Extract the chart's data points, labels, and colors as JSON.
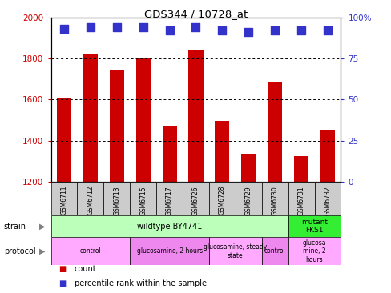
{
  "title": "GDS344 / 10728_at",
  "samples": [
    "GSM6711",
    "GSM6712",
    "GSM6713",
    "GSM6715",
    "GSM6717",
    "GSM6726",
    "GSM6728",
    "GSM6729",
    "GSM6730",
    "GSM6731",
    "GSM6732"
  ],
  "counts": [
    1610,
    1820,
    1745,
    1805,
    1470,
    1840,
    1495,
    1335,
    1685,
    1325,
    1455
  ],
  "percentiles": [
    93,
    94,
    94,
    94,
    92,
    94,
    92,
    91,
    92,
    92,
    92
  ],
  "ymin": 1200,
  "ymax": 2000,
  "yticks": [
    1200,
    1400,
    1600,
    1800,
    2000
  ],
  "right_yticks": [
    0,
    25,
    50,
    75,
    100
  ],
  "bar_color": "#cc0000",
  "dot_color": "#3333cc",
  "strain_wildtype": {
    "label": "wildtype BY4741",
    "start": 0,
    "end": 9,
    "color": "#bbffbb"
  },
  "strain_mutant": {
    "label": "mutant\nFKS1",
    "start": 9,
    "end": 11,
    "color": "#33ee33"
  },
  "protocol_groups": [
    {
      "label": "control",
      "start": 0,
      "end": 3
    },
    {
      "label": "glucosamine, 2 hours",
      "start": 3,
      "end": 6
    },
    {
      "label": "glucosamine, steady\nstate",
      "start": 6,
      "end": 8
    },
    {
      "label": "control",
      "start": 8,
      "end": 9
    },
    {
      "label": "glucosa\nmine, 2\nhours",
      "start": 9,
      "end": 11
    }
  ],
  "protocol_colors": [
    "#ffaaff",
    "#ee88ee",
    "#ffaaff",
    "#ee88ee",
    "#ffaaff"
  ],
  "bar_width": 0.55,
  "dot_size": 55,
  "xtick_bg": "#cccccc",
  "label_fontsize": 7,
  "tick_fontsize": 7.5
}
